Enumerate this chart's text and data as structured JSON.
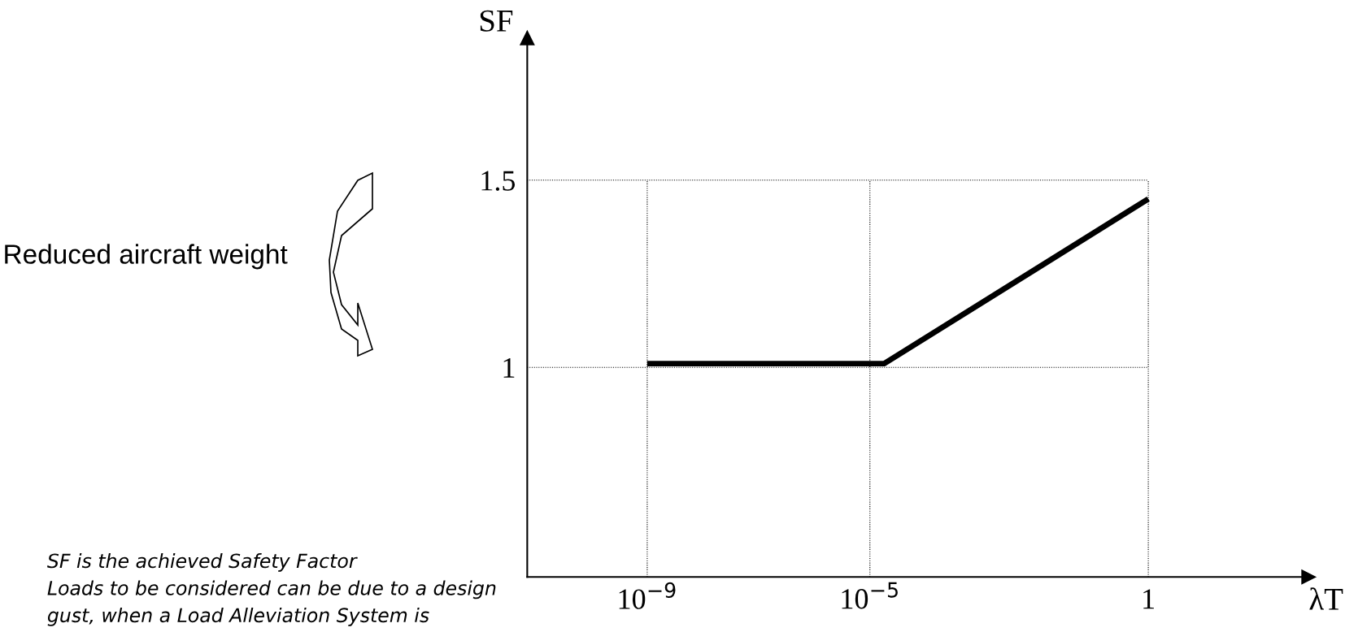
{
  "chart_data": {
    "type": "line",
    "xlabel": "λT",
    "ylabel": "SF",
    "x": [
      1e-09,
      1.8e-05,
      1
    ],
    "series": [
      {
        "color": "#000000",
        "values": [
          1.01,
          1.01,
          1.45
        ]
      }
    ],
    "log": "x",
    "xlim": [
      7e-12,
      760
    ],
    "ylim": [
      0.44,
      1.88
    ],
    "xticks": [
      {
        "value": 1e-09,
        "label": "10$^{−9}$"
      },
      {
        "value": 1e-05,
        "label": "10$^{−5}$"
      },
      1
    ],
    "yticks": [
      1,
      1.5
    ],
    "grid": true,
    "line_style": "solid",
    "marker": "none",
    "annotations": [
      "Reduced aircraft weight",
      "SF is the achieved Safety Factor",
      "Loads to be considered can be due to a design",
      "gust, when a Load Alleviation System is"
    ]
  }
}
